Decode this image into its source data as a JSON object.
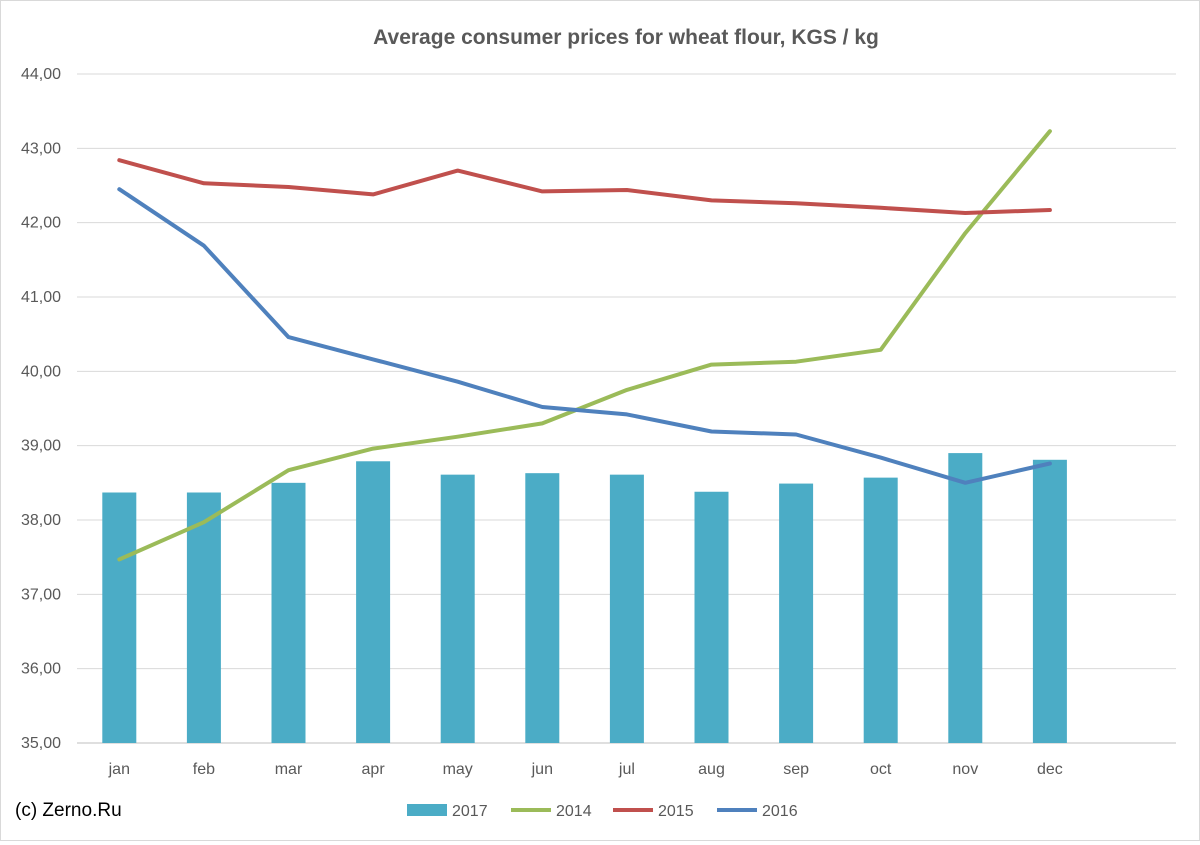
{
  "credit": "(c) Zerno.Ru",
  "chart_data": {
    "type": "bar+line",
    "title": "Average consumer prices for wheat flour, KGS / kg",
    "xlabel": "",
    "ylabel": "",
    "ylim": [
      35,
      44
    ],
    "ytick_values": [
      35,
      36,
      37,
      38,
      39,
      40,
      41,
      42,
      43,
      44
    ],
    "ytick_labels": [
      "35,00",
      "36,00",
      "37,00",
      "38,00",
      "39,00",
      "40,00",
      "41,00",
      "42,00",
      "43,00",
      "44,00"
    ],
    "categories": [
      "jan",
      "feb",
      "mar",
      "apr",
      "may",
      "jun",
      "jul",
      "aug",
      "sep",
      "oct",
      "nov",
      "dec"
    ],
    "grid": true,
    "legend_position": "bottom",
    "series": [
      {
        "name": "2017",
        "kind": "bar",
        "color": "#4bacc6",
        "values": [
          38.37,
          38.37,
          38.5,
          38.79,
          38.61,
          38.63,
          38.61,
          38.38,
          38.49,
          38.57,
          38.9,
          38.81
        ]
      },
      {
        "name": "2014",
        "kind": "line",
        "color": "#9bbb59",
        "values": [
          37.47,
          37.97,
          38.67,
          38.96,
          39.12,
          39.3,
          39.75,
          40.09,
          40.13,
          40.29,
          41.86,
          43.23
        ]
      },
      {
        "name": "2015",
        "kind": "line",
        "color": "#c0504d",
        "values": [
          42.84,
          42.53,
          42.48,
          42.38,
          42.7,
          42.42,
          42.44,
          42.3,
          42.26,
          42.2,
          42.13,
          42.17
        ]
      },
      {
        "name": "2016",
        "kind": "line",
        "color": "#4f81bd",
        "values": [
          42.45,
          41.69,
          40.46,
          40.16,
          39.86,
          39.52,
          39.42,
          39.19,
          39.15,
          38.84,
          38.5,
          38.76
        ]
      }
    ]
  }
}
